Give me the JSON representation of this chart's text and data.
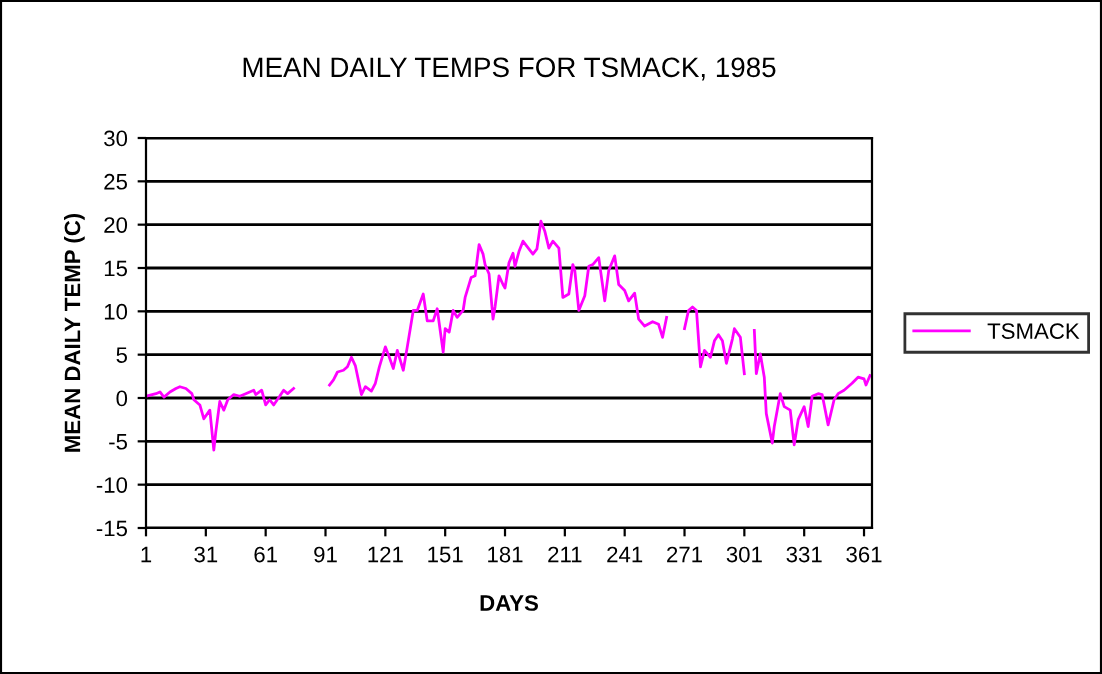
{
  "chart_data": {
    "type": "line",
    "title": "MEAN DAILY TEMPS FOR TSMACK, 1985",
    "xlabel": "DAYS",
    "ylabel": "MEAN DAILY TEMP (C)",
    "x": [
      1,
      6,
      8,
      10,
      13,
      16,
      18,
      21,
      24,
      25,
      28,
      30,
      33,
      35,
      36,
      38,
      40,
      42,
      45,
      48,
      51,
      55,
      56,
      59,
      61,
      63,
      65,
      68,
      70,
      72,
      75,
      84,
      93,
      95,
      97,
      100,
      102,
      104,
      106,
      109,
      111,
      114,
      116,
      118,
      121,
      123,
      125,
      127,
      130,
      132,
      135,
      137,
      140,
      142,
      145,
      147,
      150,
      151,
      153,
      155,
      157,
      160,
      161,
      164,
      166,
      168,
      170,
      171,
      173,
      175,
      176,
      178,
      180,
      181,
      183,
      185,
      186,
      188,
      190,
      192,
      195,
      197,
      199,
      201,
      203,
      205,
      208,
      210,
      213,
      215,
      216,
      218,
      221,
      223,
      225,
      228,
      231,
      233,
      236,
      238,
      241,
      243,
      246,
      248,
      251,
      255,
      258,
      260,
      262,
      266,
      271,
      273,
      275,
      277,
      279,
      281,
      284,
      286,
      288,
      290,
      292,
      295,
      296,
      299,
      301,
      303,
      306,
      307,
      309,
      311,
      312,
      315,
      316,
      319,
      321,
      324,
      326,
      328,
      331,
      333,
      335,
      338,
      340,
      343,
      346,
      348,
      351,
      355,
      358,
      361,
      362,
      364
    ],
    "series": [
      {
        "name": "TSMACK",
        "color": "#ff00ff",
        "values": [
          0.2,
          0.5,
          0.7,
          0.1,
          0.7,
          1.1,
          1.3,
          1.1,
          0.5,
          -0.2,
          -0.8,
          -2.4,
          -1.4,
          -6.0,
          -3.9,
          -0.4,
          -1.4,
          -0.2,
          0.4,
          0.2,
          0.5,
          0.9,
          0.4,
          0.9,
          -0.8,
          -0.2,
          -0.8,
          0.2,
          0.9,
          0.5,
          1.1,
          null,
          1.5,
          2.1,
          3.0,
          3.2,
          3.6,
          4.7,
          3.7,
          0.4,
          1.3,
          0.8,
          1.7,
          3.6,
          5.9,
          4.7,
          3.4,
          5.5,
          3.2,
          5.9,
          10.1,
          10.1,
          12.0,
          8.9,
          8.9,
          10.3,
          5.3,
          8.0,
          7.6,
          10.1,
          9.3,
          10.1,
          11.6,
          13.9,
          14.1,
          17.7,
          16.6,
          15.4,
          14.3,
          9.1,
          10.5,
          14.1,
          13.1,
          12.7,
          15.6,
          16.7,
          15.2,
          16.9,
          18.1,
          17.5,
          16.6,
          17.2,
          20.4,
          19.2,
          17.3,
          18.1,
          17.3,
          11.6,
          12.0,
          15.4,
          14.7,
          10.1,
          11.8,
          15.2,
          15.4,
          16.2,
          11.2,
          14.7,
          16.4,
          13.1,
          12.4,
          11.2,
          12.1,
          9.1,
          8.3,
          8.8,
          8.5,
          7.0,
          9.3,
          null,
          8.0,
          10.1,
          10.5,
          10.1,
          3.6,
          5.5,
          4.7,
          6.6,
          7.3,
          6.6,
          4.0,
          6.8,
          8.0,
          7.0,
          2.8,
          null,
          7.8,
          2.8,
          5.1,
          2.4,
          -1.8,
          -5.2,
          -3.3,
          0.5,
          -1.0,
          -1.4,
          -5.4,
          -2.5,
          -1.0,
          -3.3,
          0.2,
          0.5,
          0.4,
          -3.1,
          -0.2,
          0.5,
          0.9,
          1.7,
          2.4,
          2.2,
          1.5,
          2.6
        ]
      }
    ],
    "xlim": [
      1,
      365
    ],
    "xticks": [
      1,
      31,
      61,
      91,
      121,
      151,
      181,
      211,
      241,
      271,
      301,
      331,
      361
    ],
    "ylim": [
      -15,
      30
    ],
    "yticks": [
      -15,
      -10,
      -5,
      0,
      5,
      10,
      15,
      20,
      25,
      30
    ],
    "grid": "y",
    "legend": "right",
    "marker": "none",
    "line_style": "solid"
  }
}
